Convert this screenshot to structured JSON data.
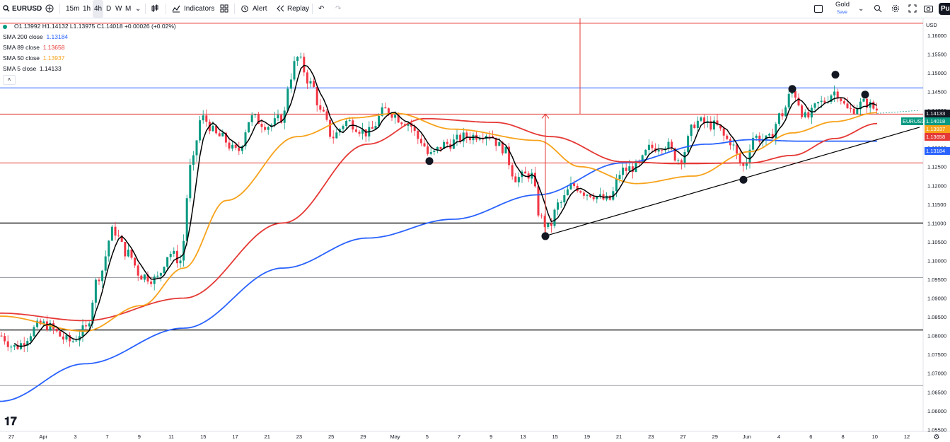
{
  "toolbar": {
    "symbol": "EURUSD",
    "intervals": [
      "15m",
      "1h",
      "4h",
      "D",
      "W",
      "M"
    ],
    "active_interval": "4h",
    "indicators_label": "Indicators",
    "alert_label": "Alert",
    "replay_label": "Replay",
    "layout_name": "Gold",
    "save_label": "Save",
    "publish_label": "Pu"
  },
  "legend": {
    "ohlc": "O1.13992  H1.14132  L1.13975  C1.14018  +0.00026 (+0.02%)",
    "sma200_label": "SMA 200 close",
    "sma200_value": "1.13184",
    "sma89_label": "SMA 89 close",
    "sma89_value": "1.13658",
    "sma50_label": "SMA 50 close",
    "sma50_value": "1.13937",
    "sma5_label": "SMA 5 close",
    "sma5_value": "1.14133"
  },
  "colors": {
    "up": "#089981",
    "down": "#f23645",
    "sma200": "#2962ff",
    "sma89": "#e53935",
    "sma50": "#f7a21b",
    "sma5": "#000000",
    "hline_red": "#e53935",
    "hline_blue": "#2962ff",
    "hline_black": "#000000"
  },
  "chart_data": {
    "type": "candlestick",
    "symbol": "EURUSD",
    "currency": "USD",
    "ylim": [
      1.0545,
      1.1645
    ],
    "y_ticks": [
      "1.16000",
      "1.15500",
      "1.15000",
      "1.14500",
      "1.14000",
      "1.13500",
      "1.13000",
      "1.12500",
      "1.12000",
      "1.11500",
      "1.11000",
      "1.10500",
      "1.10000",
      "1.09500",
      "1.09000",
      "1.08500",
      "1.08000",
      "1.07500",
      "1.07000",
      "1.06500",
      "1.06000",
      "1.05500"
    ],
    "x_ticks": [
      "27",
      "Apr",
      "3",
      "7",
      "9",
      "11",
      "15",
      "17",
      "21",
      "23",
      "25",
      "29",
      "May",
      "5",
      "7",
      "9",
      "13",
      "15",
      "19",
      "21",
      "23",
      "27",
      "29",
      "Jun",
      "4",
      "6",
      "8",
      "10",
      "12"
    ],
    "price_labels": [
      {
        "label": "EURUSD",
        "value": "1.14018",
        "color": "#089981"
      },
      {
        "label": "",
        "value": "1.14133",
        "color": "#131722"
      },
      {
        "label": "",
        "value": "1.13937",
        "color": "#f7a21b"
      },
      {
        "label": "",
        "value": "1.13658",
        "color": "#e53935"
      },
      {
        "label": "",
        "value": "1.13184",
        "color": "#2962ff"
      }
    ],
    "horizontal_levels": [
      {
        "value": 1.1632,
        "color": "red"
      },
      {
        "value": 1.146,
        "color": "blue"
      },
      {
        "value": 1.139,
        "color": "red"
      },
      {
        "value": 1.126,
        "color": "red"
      },
      {
        "value": 1.11,
        "color": "black"
      },
      {
        "value": 1.0955,
        "color": "gray"
      },
      {
        "value": 1.0815,
        "color": "black"
      },
      {
        "value": 1.0667,
        "color": "gray"
      }
    ],
    "sma200": [
      [
        0,
        1.0625
      ],
      [
        120,
        1.0725
      ],
      [
        260,
        1.082
      ],
      [
        400,
        1.098
      ],
      [
        520,
        1.106
      ],
      [
        640,
        1.111
      ],
      [
        760,
        1.1175
      ],
      [
        880,
        1.126
      ],
      [
        1000,
        1.131
      ],
      [
        1060,
        1.1322
      ],
      [
        1130,
        1.1318
      ],
      [
        1240,
        1.1318
      ]
    ],
    "sma89": [
      [
        0,
        1.086
      ],
      [
        120,
        1.084
      ],
      [
        260,
        1.09
      ],
      [
        400,
        1.11
      ],
      [
        520,
        1.131
      ],
      [
        600,
        1.1378
      ],
      [
        700,
        1.1368
      ],
      [
        780,
        1.133
      ],
      [
        880,
        1.1263
      ],
      [
        960,
        1.1258
      ],
      [
        1060,
        1.126
      ],
      [
        1120,
        1.128
      ],
      [
        1180,
        1.1325
      ],
      [
        1240,
        1.1365
      ]
    ],
    "sma50": [
      [
        0,
        1.0852
      ],
      [
        120,
        1.0812
      ],
      [
        200,
        1.088
      ],
      [
        260,
        1.098
      ],
      [
        320,
        1.116
      ],
      [
        420,
        1.133
      ],
      [
        500,
        1.138
      ],
      [
        560,
        1.1392
      ],
      [
        640,
        1.135
      ],
      [
        760,
        1.132
      ],
      [
        820,
        1.125
      ],
      [
        900,
        1.1205
      ],
      [
        980,
        1.1225
      ],
      [
        1060,
        1.129
      ],
      [
        1120,
        1.134
      ],
      [
        1180,
        1.137
      ],
      [
        1240,
        1.1394
      ]
    ],
    "trendline": {
      "from": [
        770,
        1.1065
      ],
      "to": [
        1300,
        1.1355
      ]
    },
    "markers": [
      [
        607,
        1.1265
      ],
      [
        771,
        1.1065
      ],
      [
        1051,
        1.1215
      ],
      [
        1120,
        1.1457
      ],
      [
        1181,
        1.1495
      ],
      [
        1223,
        1.1442
      ]
    ],
    "annotation_arrow": {
      "x": 771,
      "from": 1.1065,
      "to": 1.139
    }
  }
}
